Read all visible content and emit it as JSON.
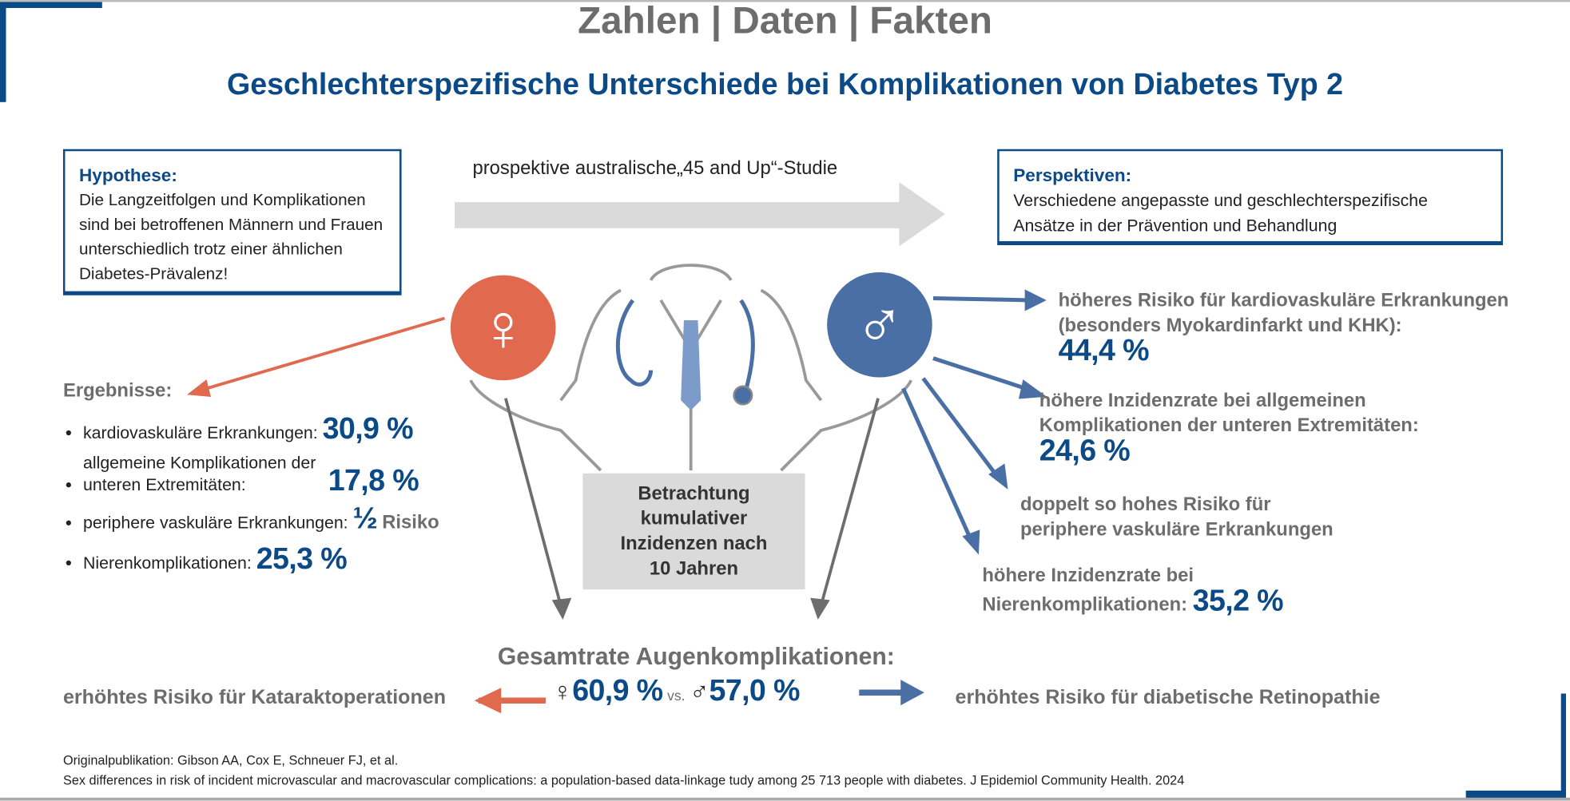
{
  "header": {
    "title": "Zahlen | Daten | Fakten",
    "subtitle": "Geschlechterspezifische Unterschiede bei Komplikationen von Diabetes Typ 2"
  },
  "hypothesis": {
    "heading": "Hypothese:",
    "text": "Die Langzeitfolgen und Komplikationen sind bei betroffenen Männern und Frauen unterschiedlich trotz einer ähnlichen Diabetes-Prävalenz!"
  },
  "study": {
    "label": "prospektive australische„45 and Up“-Studie"
  },
  "perspectives": {
    "heading": "Perspektiven:",
    "text": "Verschiedene angepasste und geschlechterspezifische Ansätze in der Prävention und Behandlung"
  },
  "women": {
    "symbol": "♀",
    "heading": "Ergebnisse:",
    "items": [
      {
        "label": "kardiovaskuläre Erkrankungen:",
        "value": "30,9 %"
      },
      {
        "label": "allgemeine Komplikationen der unteren Extremitäten:",
        "value": "17,8 %"
      },
      {
        "label": "periphere vaskuläre Erkrankungen:",
        "value": "½",
        "suffix": "Risiko"
      },
      {
        "label": "Nierenkomplikationen:",
        "value": "25,3 %"
      }
    ]
  },
  "men": {
    "symbol": "♂",
    "items": [
      {
        "label": "höheres Risiko für kardiovaskuläre Erkrankungen (besonders Myokardinfarkt und KHK):",
        "value": "44,4 %"
      },
      {
        "label": "höhere Inzidenzrate bei allgemeinen Komplikationen der unteren Extremitäten:",
        "value": "24,6 %"
      },
      {
        "label": "doppelt so hohes Risiko für periphere vaskuläre Erkrankungen",
        "value": ""
      },
      {
        "label": "höhere Inzidenzrate bei Nierenkomplikationen:",
        "value": "35,2 %"
      }
    ]
  },
  "center": {
    "label": "Betrachtung kumulativer Inzidenzen nach 10 Jahren"
  },
  "eyes": {
    "heading": "Gesamtrate Augenkomplikationen:",
    "female_symbol": "♀",
    "female_value": "60,9 %",
    "vs": "vs.",
    "male_symbol": "♂",
    "male_value": "57,0 %",
    "left_text": "erhöhtes Risiko für Kataraktoperationen",
    "right_text": "erhöhtes Risiko für diabetische Retinopathie"
  },
  "footer": {
    "line1": "Originalpublikation: Gibson AA, Cox E, Schneuer FJ, et al.",
    "line2": "Sex differences in risk of incident microvascular and macrovascular complications: a population-based data-linkage tudy among 25 713 people with diabetes. J Epidemiol Community Health. 2024"
  },
  "colors": {
    "blue": "#0b4a86",
    "female": "#e0694e",
    "male": "#4a6fa5",
    "grey": "#6d6d6d"
  }
}
